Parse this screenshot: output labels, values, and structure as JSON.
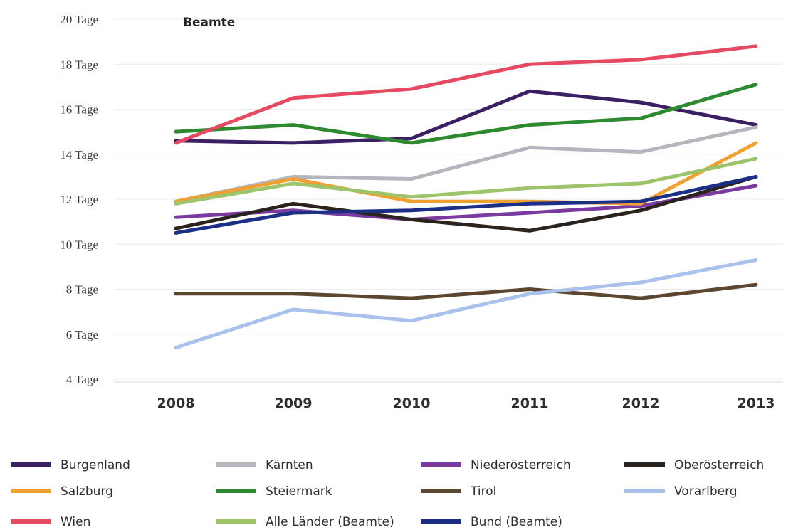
{
  "chart_data": {
    "type": "line",
    "title": "Beamte",
    "xlabel": "",
    "ylabel": "",
    "x": [
      "2008",
      "2009",
      "2010",
      "2011",
      "2012",
      "2013"
    ],
    "yticks": [
      "4 Tage",
      "6 Tage",
      "8 Tage",
      "10 Tage",
      "12 Tage",
      "14 Tage",
      "16 Tage",
      "18 Tage",
      "20 Tage"
    ],
    "ylim": [
      4,
      20
    ],
    "grid": true,
    "legend_position": "bottom",
    "series": [
      {
        "name": "Burgenland",
        "color": "#3b1f63",
        "values": [
          14.6,
          14.5,
          14.7,
          16.8,
          16.3,
          15.3
        ]
      },
      {
        "name": "Kärnten",
        "color": "#b5b5bd",
        "values": [
          11.9,
          13.0,
          12.9,
          14.3,
          14.1,
          15.2
        ]
      },
      {
        "name": "Niederösterreich",
        "color": "#7a3aa0",
        "values": [
          11.2,
          11.5,
          11.1,
          11.4,
          11.7,
          12.6
        ]
      },
      {
        "name": "Oberösterreich",
        "color": "#2b231d",
        "values": [
          10.7,
          11.8,
          11.1,
          10.6,
          11.5,
          13.0
        ]
      },
      {
        "name": "Salzburg",
        "color": "#f0a031",
        "values": [
          11.9,
          12.9,
          11.9,
          11.9,
          11.8,
          14.5
        ]
      },
      {
        "name": "Steiermark",
        "color": "#2e8a2e",
        "values": [
          15.0,
          15.3,
          14.5,
          15.3,
          15.6,
          17.1
        ]
      },
      {
        "name": "Tirol",
        "color": "#5c4630",
        "values": [
          7.8,
          7.8,
          7.6,
          8.0,
          7.6,
          8.2
        ]
      },
      {
        "name": "Vorarlberg",
        "color": "#a9c1ec",
        "values": [
          5.4,
          7.1,
          6.6,
          7.8,
          8.3,
          9.3
        ]
      },
      {
        "name": "Wien",
        "color": "#e54a62",
        "values": [
          14.5,
          16.5,
          16.9,
          18.0,
          18.2,
          18.8
        ]
      },
      {
        "name": "Alle Länder (Beamte)",
        "color": "#9dc46a",
        "values": [
          11.8,
          12.7,
          12.1,
          12.5,
          12.7,
          13.8
        ]
      },
      {
        "name": "Bund (Beamte)",
        "color": "#1c2f86",
        "values": [
          10.5,
          11.4,
          11.5,
          11.8,
          11.9,
          13.0
        ]
      }
    ]
  }
}
